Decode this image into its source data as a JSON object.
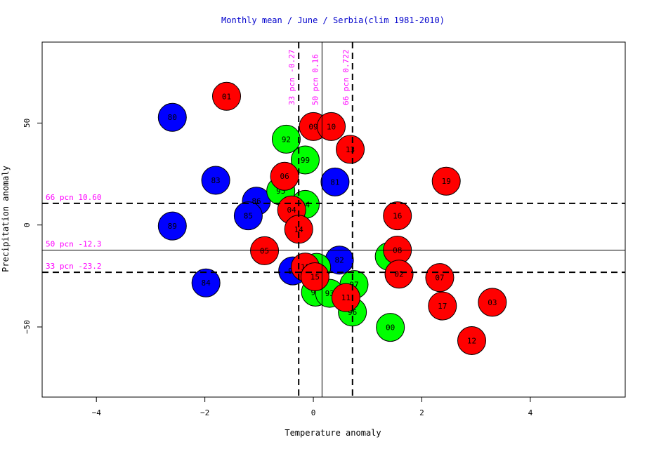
{
  "chart_data": {
    "type": "scatter",
    "title": "Monthly mean / June / Serbia(clim 1981-2010)",
    "xlabel": "Temperature anomaly",
    "ylabel": "Precipitation anomaly",
    "xlim": [
      -5,
      5.75
    ],
    "ylim": [
      -84.4,
      89.7
    ],
    "xticks": [
      -4,
      -2,
      0,
      2,
      4
    ],
    "yticks": [
      -50,
      0,
      50
    ],
    "colors": {
      "blue": "#0000ff",
      "green": "#00ff00",
      "red": "#ff0000",
      "threshold_label": "#ff00ff",
      "title": "#0000cc"
    },
    "thresholds": {
      "vertical": [
        {
          "label": "33 pcn -0.27",
          "x": -0.27,
          "style": "dashed"
        },
        {
          "label": "50 pcn 0.16",
          "x": 0.16,
          "style": "solid"
        },
        {
          "label": "66 pcn 0.722",
          "x": 0.722,
          "style": "dashed"
        }
      ],
      "horizontal": [
        {
          "label": "66 pcn 10.60",
          "y": 10.6,
          "style": "dashed"
        },
        {
          "label": "50 pcn -12.3",
          "y": -12.3,
          "style": "solid"
        },
        {
          "label": "33 pcn -23.2",
          "y": -23.2,
          "style": "dashed"
        }
      ]
    },
    "points": [
      {
        "label": "80",
        "x": -2.6,
        "y": 52.8,
        "color": "blue"
      },
      {
        "label": "83",
        "x": -1.8,
        "y": 21.9,
        "color": "blue"
      },
      {
        "label": "86",
        "x": -1.05,
        "y": 11.7,
        "color": "blue"
      },
      {
        "label": "89",
        "x": -2.6,
        "y": -0.5,
        "color": "blue"
      },
      {
        "label": "85",
        "x": -1.2,
        "y": 4.5,
        "color": "blue"
      },
      {
        "label": "84",
        "x": -1.98,
        "y": -28.4,
        "color": "blue"
      },
      {
        "label": "90",
        "x": -0.38,
        "y": -22.5,
        "color": "blue"
      },
      {
        "label": "81",
        "x": 0.4,
        "y": 21.1,
        "color": "blue"
      },
      {
        "label": "82",
        "x": 0.48,
        "y": -17.2,
        "color": "blue"
      },
      {
        "label": "92",
        "x": -0.5,
        "y": 42.1,
        "color": "green"
      },
      {
        "label": "99",
        "x": -0.15,
        "y": 31.9,
        "color": "green"
      },
      {
        "label": "95",
        "x": -0.6,
        "y": 16.7,
        "color": "green"
      },
      {
        "label": "04",
        "x": -0.15,
        "y": 10.1,
        "color": "green"
      },
      {
        "label": "87",
        "x": 0.06,
        "y": -20.8,
        "color": "green"
      },
      {
        "label": "91",
        "x": 0.04,
        "y": -32.9,
        "color": "green"
      },
      {
        "label": "93",
        "x": 0.3,
        "y": -33.5,
        "color": "green"
      },
      {
        "label": "97",
        "x": 0.75,
        "y": -29.2,
        "color": "green"
      },
      {
        "label": "96",
        "x": 0.72,
        "y": -42.7,
        "color": "green"
      },
      {
        "label": "98",
        "x": 1.4,
        "y": -15.4,
        "color": "green"
      },
      {
        "label": "00",
        "x": 1.42,
        "y": -50.2,
        "color": "green"
      },
      {
        "label": "01",
        "x": -1.6,
        "y": 63.1,
        "color": "red"
      },
      {
        "label": "09",
        "x": 0.0,
        "y": 48.3,
        "color": "red"
      },
      {
        "label": "10",
        "x": 0.33,
        "y": 48.3,
        "color": "red"
      },
      {
        "label": "13",
        "x": 0.68,
        "y": 37.1,
        "color": "red"
      },
      {
        "label": "06",
        "x": -0.53,
        "y": 23.9,
        "color": "red"
      },
      {
        "label": "04",
        "x": -0.4,
        "y": 7.4,
        "color": "red"
      },
      {
        "label": "14",
        "x": -0.27,
        "y": -2.1,
        "color": "red"
      },
      {
        "label": "05",
        "x": -0.9,
        "y": -12.6,
        "color": "red"
      },
      {
        "label": "18",
        "x": -0.15,
        "y": -20.6,
        "color": "red"
      },
      {
        "label": "15",
        "x": 0.03,
        "y": -25.4,
        "color": "red"
      },
      {
        "label": "11",
        "x": 0.6,
        "y": -35.6,
        "color": "red"
      },
      {
        "label": "19",
        "x": 2.45,
        "y": 21.5,
        "color": "red"
      },
      {
        "label": "16",
        "x": 1.55,
        "y": 4.5,
        "color": "red"
      },
      {
        "label": "08",
        "x": 1.55,
        "y": -12.3,
        "color": "red"
      },
      {
        "label": "02",
        "x": 1.58,
        "y": -24.1,
        "color": "red"
      },
      {
        "label": "07",
        "x": 2.33,
        "y": -25.8,
        "color": "red"
      },
      {
        "label": "17",
        "x": 2.38,
        "y": -39.7,
        "color": "red"
      },
      {
        "label": "03",
        "x": 3.3,
        "y": -37.9,
        "color": "red"
      },
      {
        "label": "12",
        "x": 2.92,
        "y": -56.7,
        "color": "red"
      }
    ]
  }
}
